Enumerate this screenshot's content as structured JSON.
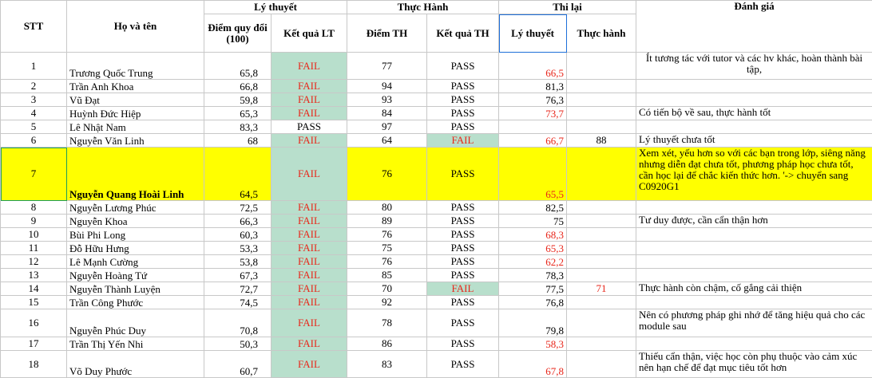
{
  "headers": {
    "stt": "STT",
    "name": "Họ và tên",
    "theory_group": "Lý thuyết",
    "practice_group": "Thực Hành",
    "retake_group": "Thi lại",
    "eval": "Đánh giá",
    "theory_score": "Điểm quy đổi (100)",
    "theory_result": "Kết quả LT",
    "practice_score": "Điểm TH",
    "practice_result": "Kết quả TH",
    "retake_theory": "Lý thuyết",
    "retake_practice": "Thực hành"
  },
  "colors": {
    "fail_text": "#e8271b",
    "fail_bg": "#b8dfcc",
    "highlight": "#ffff00"
  },
  "rows": [
    {
      "stt": "1",
      "name": "Trương Quốc Trung",
      "lt": "65,8",
      "kqlt": "FAIL",
      "th": "77",
      "kqth": "PASS",
      "tl_lt": "66,5",
      "tl_th": "",
      "eval": "Ít tương tác với tutor và các hv khác, hoàn thành bài tập,"
    },
    {
      "stt": "2",
      "name": "Trần Anh Khoa",
      "lt": "66,8",
      "kqlt": "FAIL",
      "th": "94",
      "kqth": "PASS",
      "tl_lt": "81,3",
      "tl_th": "",
      "eval": ""
    },
    {
      "stt": "3",
      "name": "Vũ Đạt",
      "lt": "59,8",
      "kqlt": "FAIL",
      "th": "93",
      "kqth": "PASS",
      "tl_lt": "76,3",
      "tl_th": "",
      "eval": ""
    },
    {
      "stt": "4",
      "name": "Huỳnh Đức Hiệp",
      "lt": "65,3",
      "kqlt": "FAIL",
      "th": "84",
      "kqth": "PASS",
      "tl_lt": "73,7",
      "tl_th": "",
      "eval": "Có tiến bộ về sau, thực hành tốt"
    },
    {
      "stt": "5",
      "name": "Lê Nhật Nam",
      "lt": "83,3",
      "kqlt": "PASS",
      "th": "97",
      "kqth": "PASS",
      "tl_lt": "",
      "tl_th": "",
      "eval": ""
    },
    {
      "stt": "6",
      "name": "Nguyễn Văn Linh",
      "lt": "68",
      "kqlt": "FAIL",
      "th": "64",
      "kqth": "FAIL",
      "tl_lt": "66,7",
      "tl_th": "88",
      "eval": "Lý thuyết chưa tốt"
    },
    {
      "stt": "7",
      "name": "Nguyễn Quang Hoài Linh",
      "lt": "64,5",
      "kqlt": "FAIL",
      "th": "76",
      "kqth": "PASS",
      "tl_lt": "65,5",
      "tl_th": "",
      "eval": "Xem xét, yếu hơn so với các bạn trong lớp, siêng năng nhưng diễn đạt chưa tốt, phương pháp học chưa tốt, cần học lại để chắc kiến thức hơn. '-> chuyển sang C0920G1"
    },
    {
      "stt": "8",
      "name": "Nguyễn Lương Phúc",
      "lt": "72,5",
      "kqlt": "FAIL",
      "th": "80",
      "kqth": "PASS",
      "tl_lt": "82,5",
      "tl_th": "",
      "eval": ""
    },
    {
      "stt": "9",
      "name": "Nguyễn Khoa",
      "lt": "66,3",
      "kqlt": "FAIL",
      "th": "89",
      "kqth": "PASS",
      "tl_lt": "75",
      "tl_th": "",
      "eval": "Tư duy được, cần cẩn thận hơn"
    },
    {
      "stt": "10",
      "name": "Bùi Phi Long",
      "lt": "60,3",
      "kqlt": "FAIL",
      "th": "76",
      "kqth": "PASS",
      "tl_lt": "68,3",
      "tl_th": "",
      "eval": ""
    },
    {
      "stt": "11",
      "name": "Đỗ Hữu Hưng",
      "lt": "53,3",
      "kqlt": "FAIL",
      "th": "75",
      "kqth": "PASS",
      "tl_lt": "65,3",
      "tl_th": "",
      "eval": ""
    },
    {
      "stt": "12",
      "name": "Lê Mạnh Cường",
      "lt": "53,8",
      "kqlt": "FAIL",
      "th": "76",
      "kqth": "PASS",
      "tl_lt": "62,2",
      "tl_th": "",
      "eval": ""
    },
    {
      "stt": "13",
      "name": "Nguyễn Hoàng Tứ",
      "lt": "67,3",
      "kqlt": "FAIL",
      "th": "85",
      "kqth": "PASS",
      "tl_lt": "78,3",
      "tl_th": "",
      "eval": ""
    },
    {
      "stt": "14",
      "name": "Nguyễn Thành Luyện",
      "lt": "72,7",
      "kqlt": "FAIL",
      "th": "70",
      "kqth": "FAIL",
      "tl_lt": "77,5",
      "tl_th": "71",
      "eval": "Thực hành còn chậm, cố gắng cải thiện"
    },
    {
      "stt": "15",
      "name": "Trần Công Phước",
      "lt": "74,5",
      "kqlt": "FAIL",
      "th": "92",
      "kqth": "PASS",
      "tl_lt": "76,8",
      "tl_th": "",
      "eval": ""
    },
    {
      "stt": "16",
      "name": "Nguyễn Phúc Duy",
      "lt": "70,8",
      "kqlt": "FAIL",
      "th": "78",
      "kqth": "PASS",
      "tl_lt": "79,8",
      "tl_th": "",
      "eval": "Nên có phương pháp ghi nhớ để tăng hiệu quả cho các module sau"
    },
    {
      "stt": "17",
      "name": "Trần Thị Yến Nhi",
      "lt": "50,3",
      "kqlt": "FAIL",
      "th": "86",
      "kqth": "PASS",
      "tl_lt": "58,3",
      "tl_th": "",
      "eval": ""
    },
    {
      "stt": "18",
      "name": "Võ Duy Phước",
      "lt": "60,7",
      "kqlt": "FAIL",
      "th": "83",
      "kqth": "PASS",
      "tl_lt": "67,8",
      "tl_th": "",
      "eval": "Thiếu cẩn thận, việc học còn phụ thuộc vào cảm xúc nên hạn chế để đạt mục tiêu tốt hơn"
    }
  ]
}
